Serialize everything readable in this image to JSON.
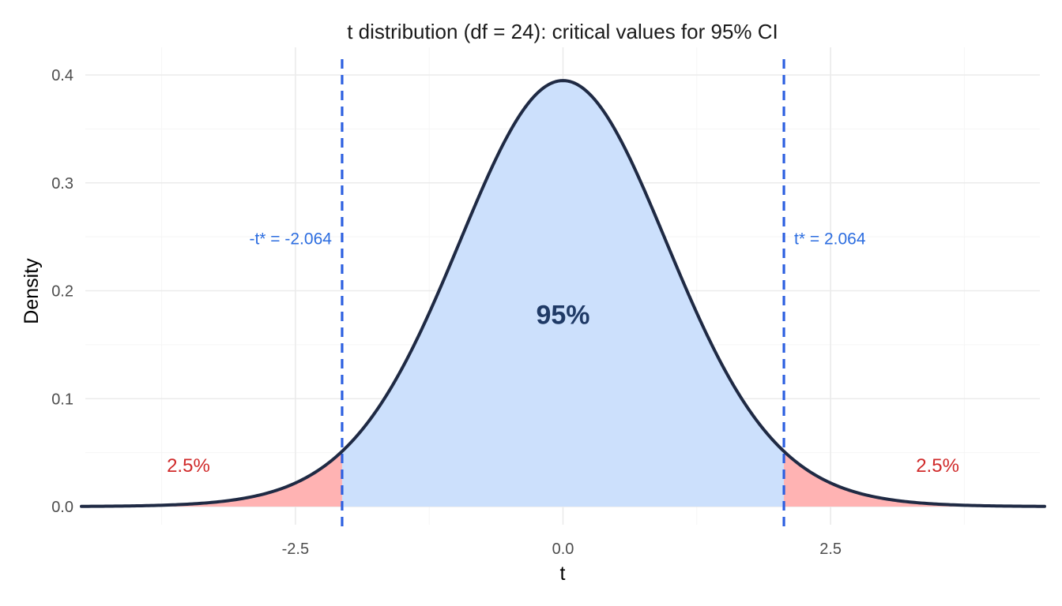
{
  "chart_data": {
    "type": "area",
    "title": "t distribution (df = 24): critical values for 95% CI",
    "xlabel": "t",
    "ylabel": "Density",
    "df": 24,
    "xlim": [
      -4.5,
      4.5
    ],
    "ylim": [
      0,
      0.4
    ],
    "x_ticks": [
      -2.5,
      0.0,
      2.5
    ],
    "x_tick_labels": [
      "-2.5",
      "0.0",
      "2.5"
    ],
    "y_ticks": [
      0.0,
      0.1,
      0.2,
      0.3,
      0.4
    ],
    "y_tick_labels": [
      "0.0",
      "0.1",
      "0.2",
      "0.3",
      "0.4"
    ],
    "grid": true,
    "legend": "none",
    "critical_values": [
      {
        "x": -2.064,
        "label": "-t* = -2.064",
        "label_y": 0.249
      },
      {
        "x": 2.064,
        "label": "t* = 2.064",
        "label_y": 0.249
      }
    ],
    "regions": [
      {
        "from": -4.5,
        "to": -2.064,
        "color": "#ffb3b3",
        "label": "2.5%",
        "label_x": -3.5,
        "label_y": 0.038
      },
      {
        "from": -2.064,
        "to": 2.064,
        "color": "#cce0fc",
        "label": "95%",
        "label_x": 0.0,
        "label_y": 0.178
      },
      {
        "from": 2.064,
        "to": 4.5,
        "color": "#ffb3b3",
        "label": "2.5%",
        "label_x": 3.5,
        "label_y": 0.038
      }
    ],
    "colors": {
      "curve": "#1f2a44",
      "critical_line": "#2c5fe0",
      "critical_text": "#2c6de0",
      "tail_text": "#d02a2a",
      "center_text": "#1f3a66",
      "grid_major": "#ebebeb",
      "grid_minor": "#f5f5f5"
    }
  }
}
